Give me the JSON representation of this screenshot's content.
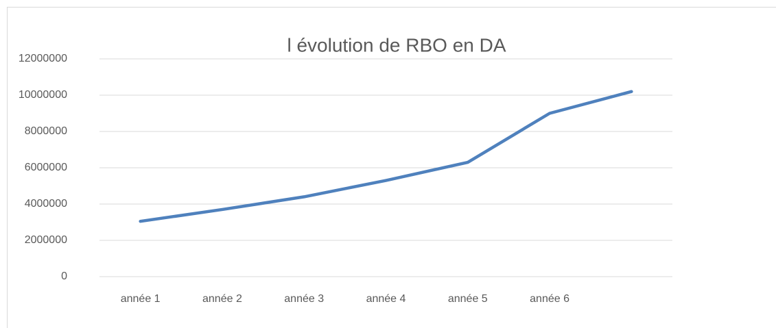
{
  "chart_data": {
    "type": "line",
    "title": "l évolution de RBO en DA",
    "categories": [
      "année 1",
      "année 2",
      "année 3",
      "année 4",
      "année 5",
      "année 6",
      null
    ],
    "series": [
      {
        "name": "RBO",
        "color": "#4f81bd",
        "values": [
          3050000,
          3700000,
          4400000,
          5300000,
          6300000,
          9000000,
          10200000
        ]
      }
    ],
    "ylim": [
      0,
      12000000
    ],
    "yticks": [
      0,
      2000000,
      4000000,
      6000000,
      8000000,
      10000000,
      12000000
    ],
    "grid": true
  }
}
